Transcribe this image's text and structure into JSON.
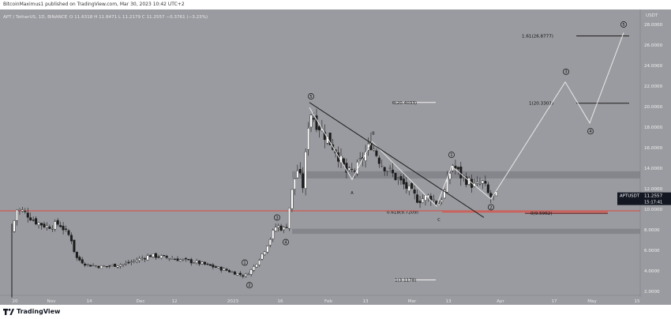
{
  "header": {
    "publisher_line": "BitcoinMaximus1 published on TradingView.com, Mar 30, 2023 10:42 UTC+2"
  },
  "legend": {
    "symbol_line": "APT / TetherUS, 1D, BINANCE",
    "ohlc": "O 11.6318  H 11.8471  L 11.2179  C 11.2557  −0.3761 (−3.23%)"
  },
  "footer": {
    "brand": "TradingView"
  },
  "colors": {
    "background": "#9a9ba0",
    "up_candle": "#ffffff",
    "down_candle": "#1c1c1c",
    "wave_line": "#e8e8e8",
    "trendline": "#1f1f1f",
    "resistance_line": "#e0473e",
    "zone": "#83848a",
    "price_label_bg": "#131722"
  },
  "chart_data": {
    "type": "candlestick",
    "y_axis": {
      "unit_label": "USDT",
      "ticks": [
        "28.0000",
        "26.0000",
        "24.0000",
        "22.0000",
        "20.0000",
        "18.0000",
        "16.0000",
        "14.0000",
        "12.0000",
        "10.0000",
        "8.0000",
        "6.0000",
        "4.0000",
        "2.0000"
      ],
      "ylim": [
        1.4,
        29.4
      ]
    },
    "x_axis": {
      "ticks": [
        "20",
        "Nov",
        "14",
        "Dec",
        "12",
        "2023",
        "16",
        "Feb",
        "13",
        "Mar",
        "13",
        "Apr",
        "17",
        "May",
        "15"
      ]
    },
    "last_price": {
      "symbol": "APTUSDT",
      "value": "11.2557",
      "countdown": "15:17:41"
    },
    "horizontal_levels": [
      {
        "label": "1.61(26.8777)",
        "value": 26.88
      },
      {
        "label": "1(20.3301)",
        "value": 20.33
      },
      {
        "label": "0(20.4033)",
        "value": 20.4
      },
      {
        "label": "0.618(9.7209)",
        "value": 9.72
      },
      {
        "label": "0(9.5962)",
        "value": 9.6
      },
      {
        "label": "1(3.1178)",
        "value": 3.12
      }
    ],
    "zones": [
      {
        "from": 13.0,
        "to": 13.7
      },
      {
        "from": 7.6,
        "to": 8.1
      }
    ],
    "resistance_line_value": 9.85,
    "wave_labels": [
      {
        "text": "5",
        "circled": true
      },
      {
        "text": "A",
        "circled": false
      },
      {
        "text": "B",
        "circled": false
      },
      {
        "text": "C",
        "circled": false
      },
      {
        "text": "1",
        "circled": true
      },
      {
        "text": "2",
        "circled": true
      },
      {
        "text": "3",
        "circled": true
      },
      {
        "text": "4",
        "circled": true
      },
      {
        "text": "5",
        "circled": true
      },
      {
        "text": "1",
        "circled": true
      },
      {
        "text": "2",
        "circled": true
      },
      {
        "text": "3",
        "circled": true
      },
      {
        "text": "4",
        "circled": true
      }
    ]
  }
}
